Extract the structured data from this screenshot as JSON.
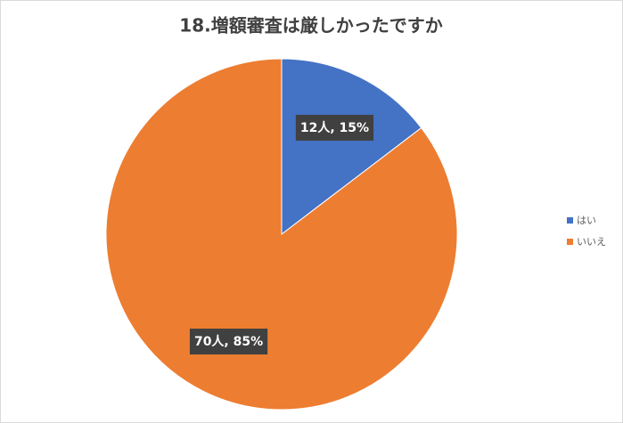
{
  "chart_data": {
    "type": "pie",
    "title": "18.増額審査は厳しかったですか",
    "categories": [
      "はい",
      "いいえ"
    ],
    "values": [
      12,
      70
    ],
    "value_labels": [
      "12人, 15%",
      "70人, 85%"
    ],
    "colors": [
      "#4472c4",
      "#ed7d31"
    ],
    "legend": "right"
  }
}
